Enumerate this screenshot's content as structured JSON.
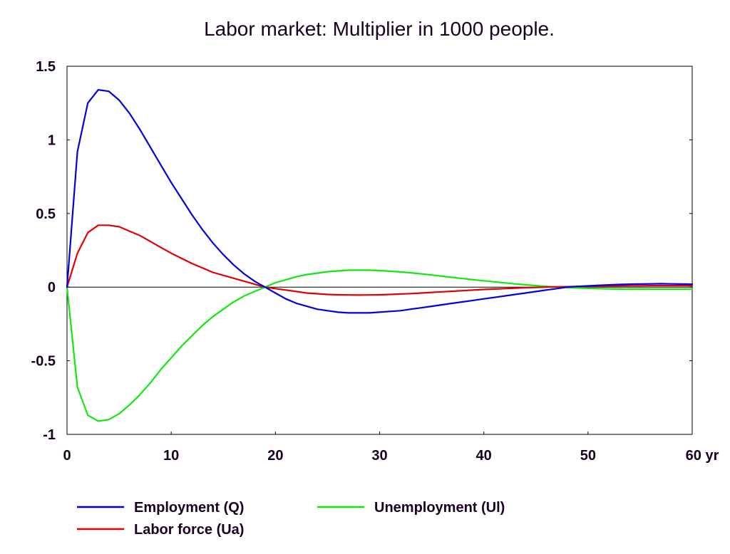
{
  "chart_data": {
    "type": "line",
    "title": "Labor market: Multiplier in 1000 people.",
    "xlabel": "",
    "ylabel": "",
    "xlim": [
      0,
      60
    ],
    "ylim": [
      -1,
      1.5
    ],
    "x_ticks": [
      {
        "value": 0,
        "label": "0"
      },
      {
        "value": 10,
        "label": "10"
      },
      {
        "value": 20,
        "label": "20"
      },
      {
        "value": 30,
        "label": "30"
      },
      {
        "value": 40,
        "label": "40"
      },
      {
        "value": 50,
        "label": "50"
      },
      {
        "value": 60,
        "label": "60 yr"
      }
    ],
    "y_ticks": [
      {
        "value": 1.5,
        "label": "1.5"
      },
      {
        "value": 1,
        "label": "1"
      },
      {
        "value": 0.5,
        "label": "0.5"
      },
      {
        "value": 0,
        "label": "0"
      },
      {
        "value": -0.5,
        "label": "-0.5"
      },
      {
        "value": -1,
        "label": "-1"
      }
    ],
    "grid": false,
    "zero_line": true,
    "legend_position": "bottom",
    "x": [
      0,
      1,
      2,
      3,
      4,
      5,
      6,
      7,
      8,
      9,
      10,
      11,
      12,
      13,
      14,
      15,
      16,
      17,
      18,
      19,
      20,
      21,
      22,
      23,
      24,
      25,
      26,
      27,
      28,
      29,
      30,
      31,
      32,
      33,
      34,
      35,
      36,
      37,
      38,
      39,
      40,
      41,
      42,
      43,
      44,
      45,
      46,
      47,
      48,
      49,
      50,
      51,
      52,
      53,
      54,
      55,
      56,
      57,
      58,
      59,
      60
    ],
    "series": [
      {
        "name": "Employment (Q)",
        "color": "#0000e0",
        "values": [
          0,
          0.92,
          1.25,
          1.34,
          1.33,
          1.27,
          1.18,
          1.07,
          0.95,
          0.83,
          0.71,
          0.6,
          0.49,
          0.39,
          0.3,
          0.22,
          0.15,
          0.09,
          0.04,
          0,
          -0.04,
          -0.08,
          -0.11,
          -0.13,
          -0.15,
          -0.16,
          -0.17,
          -0.175,
          -0.175,
          -0.175,
          -0.17,
          -0.165,
          -0.16,
          -0.15,
          -0.14,
          -0.13,
          -0.12,
          -0.11,
          -0.1,
          -0.09,
          -0.08,
          -0.07,
          -0.06,
          -0.05,
          -0.04,
          -0.03,
          -0.02,
          -0.01,
          0,
          0.005,
          0.008,
          0.012,
          0.015,
          0.018,
          0.02,
          0.021,
          0.022,
          0.023,
          0.022,
          0.021,
          0.02
        ]
      },
      {
        "name": "Labor force (Ua)",
        "color": "#e00000",
        "values": [
          0,
          0.23,
          0.37,
          0.42,
          0.42,
          0.41,
          0.38,
          0.35,
          0.31,
          0.27,
          0.23,
          0.195,
          0.16,
          0.13,
          0.1,
          0.08,
          0.06,
          0.04,
          0.02,
          0,
          -0.01,
          -0.02,
          -0.03,
          -0.04,
          -0.045,
          -0.05,
          -0.052,
          -0.053,
          -0.054,
          -0.053,
          -0.052,
          -0.05,
          -0.047,
          -0.044,
          -0.04,
          -0.036,
          -0.032,
          -0.028,
          -0.024,
          -0.02,
          -0.016,
          -0.013,
          -0.01,
          -0.007,
          -0.004,
          -0.002,
          0,
          0.002,
          0.003,
          0.004,
          0.005,
          0.006,
          0.007,
          0.008,
          0.009,
          0.009,
          0.01,
          0.01,
          0.01,
          0.01,
          0.01
        ]
      },
      {
        "name": "Unemployment (Ul)",
        "color": "#10e810",
        "values": [
          0,
          -0.68,
          -0.87,
          -0.91,
          -0.9,
          -0.86,
          -0.8,
          -0.73,
          -0.65,
          -0.56,
          -0.48,
          -0.4,
          -0.33,
          -0.26,
          -0.2,
          -0.15,
          -0.1,
          -0.06,
          -0.03,
          0,
          0.03,
          0.05,
          0.07,
          0.085,
          0.095,
          0.105,
          0.11,
          0.115,
          0.115,
          0.115,
          0.112,
          0.108,
          0.103,
          0.097,
          0.09,
          0.082,
          0.074,
          0.066,
          0.058,
          0.05,
          0.043,
          0.036,
          0.029,
          0.022,
          0.016,
          0.01,
          0.005,
          0.001,
          -0.003,
          -0.006,
          -0.008,
          -0.01,
          -0.012,
          -0.013,
          -0.014,
          -0.014,
          -0.014,
          -0.014,
          -0.014,
          -0.014,
          -0.014
        ]
      }
    ]
  }
}
